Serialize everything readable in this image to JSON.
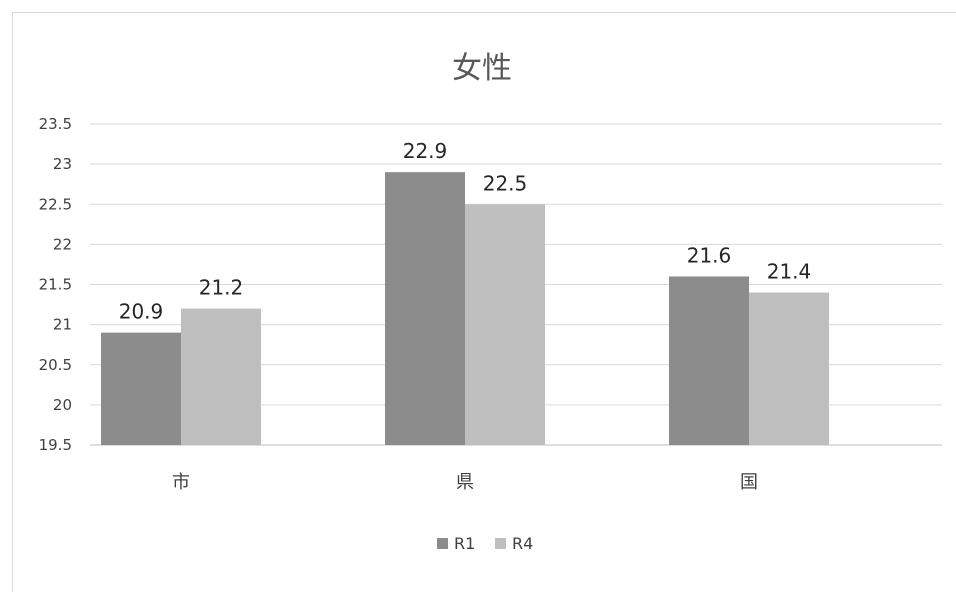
{
  "chart_data": {
    "type": "bar",
    "title": "女性",
    "categories": [
      "市",
      "県",
      "国"
    ],
    "series": [
      {
        "name": "R1",
        "values": [
          20.9,
          22.9,
          21.6
        ],
        "color": "#8c8c8c"
      },
      {
        "name": "R4",
        "values": [
          21.2,
          22.5,
          21.4
        ],
        "color": "#bfbfbf"
      }
    ],
    "ylim": [
      19.5,
      23.5
    ],
    "yticks": [
      "19.5",
      "20",
      "20.5",
      "21",
      "21.5",
      "22",
      "22.5",
      "23",
      "23.5"
    ],
    "grid": true,
    "legend_position": "bottom",
    "grid_color": "#d9d9d9",
    "axis_color": "#bfbfbf"
  }
}
